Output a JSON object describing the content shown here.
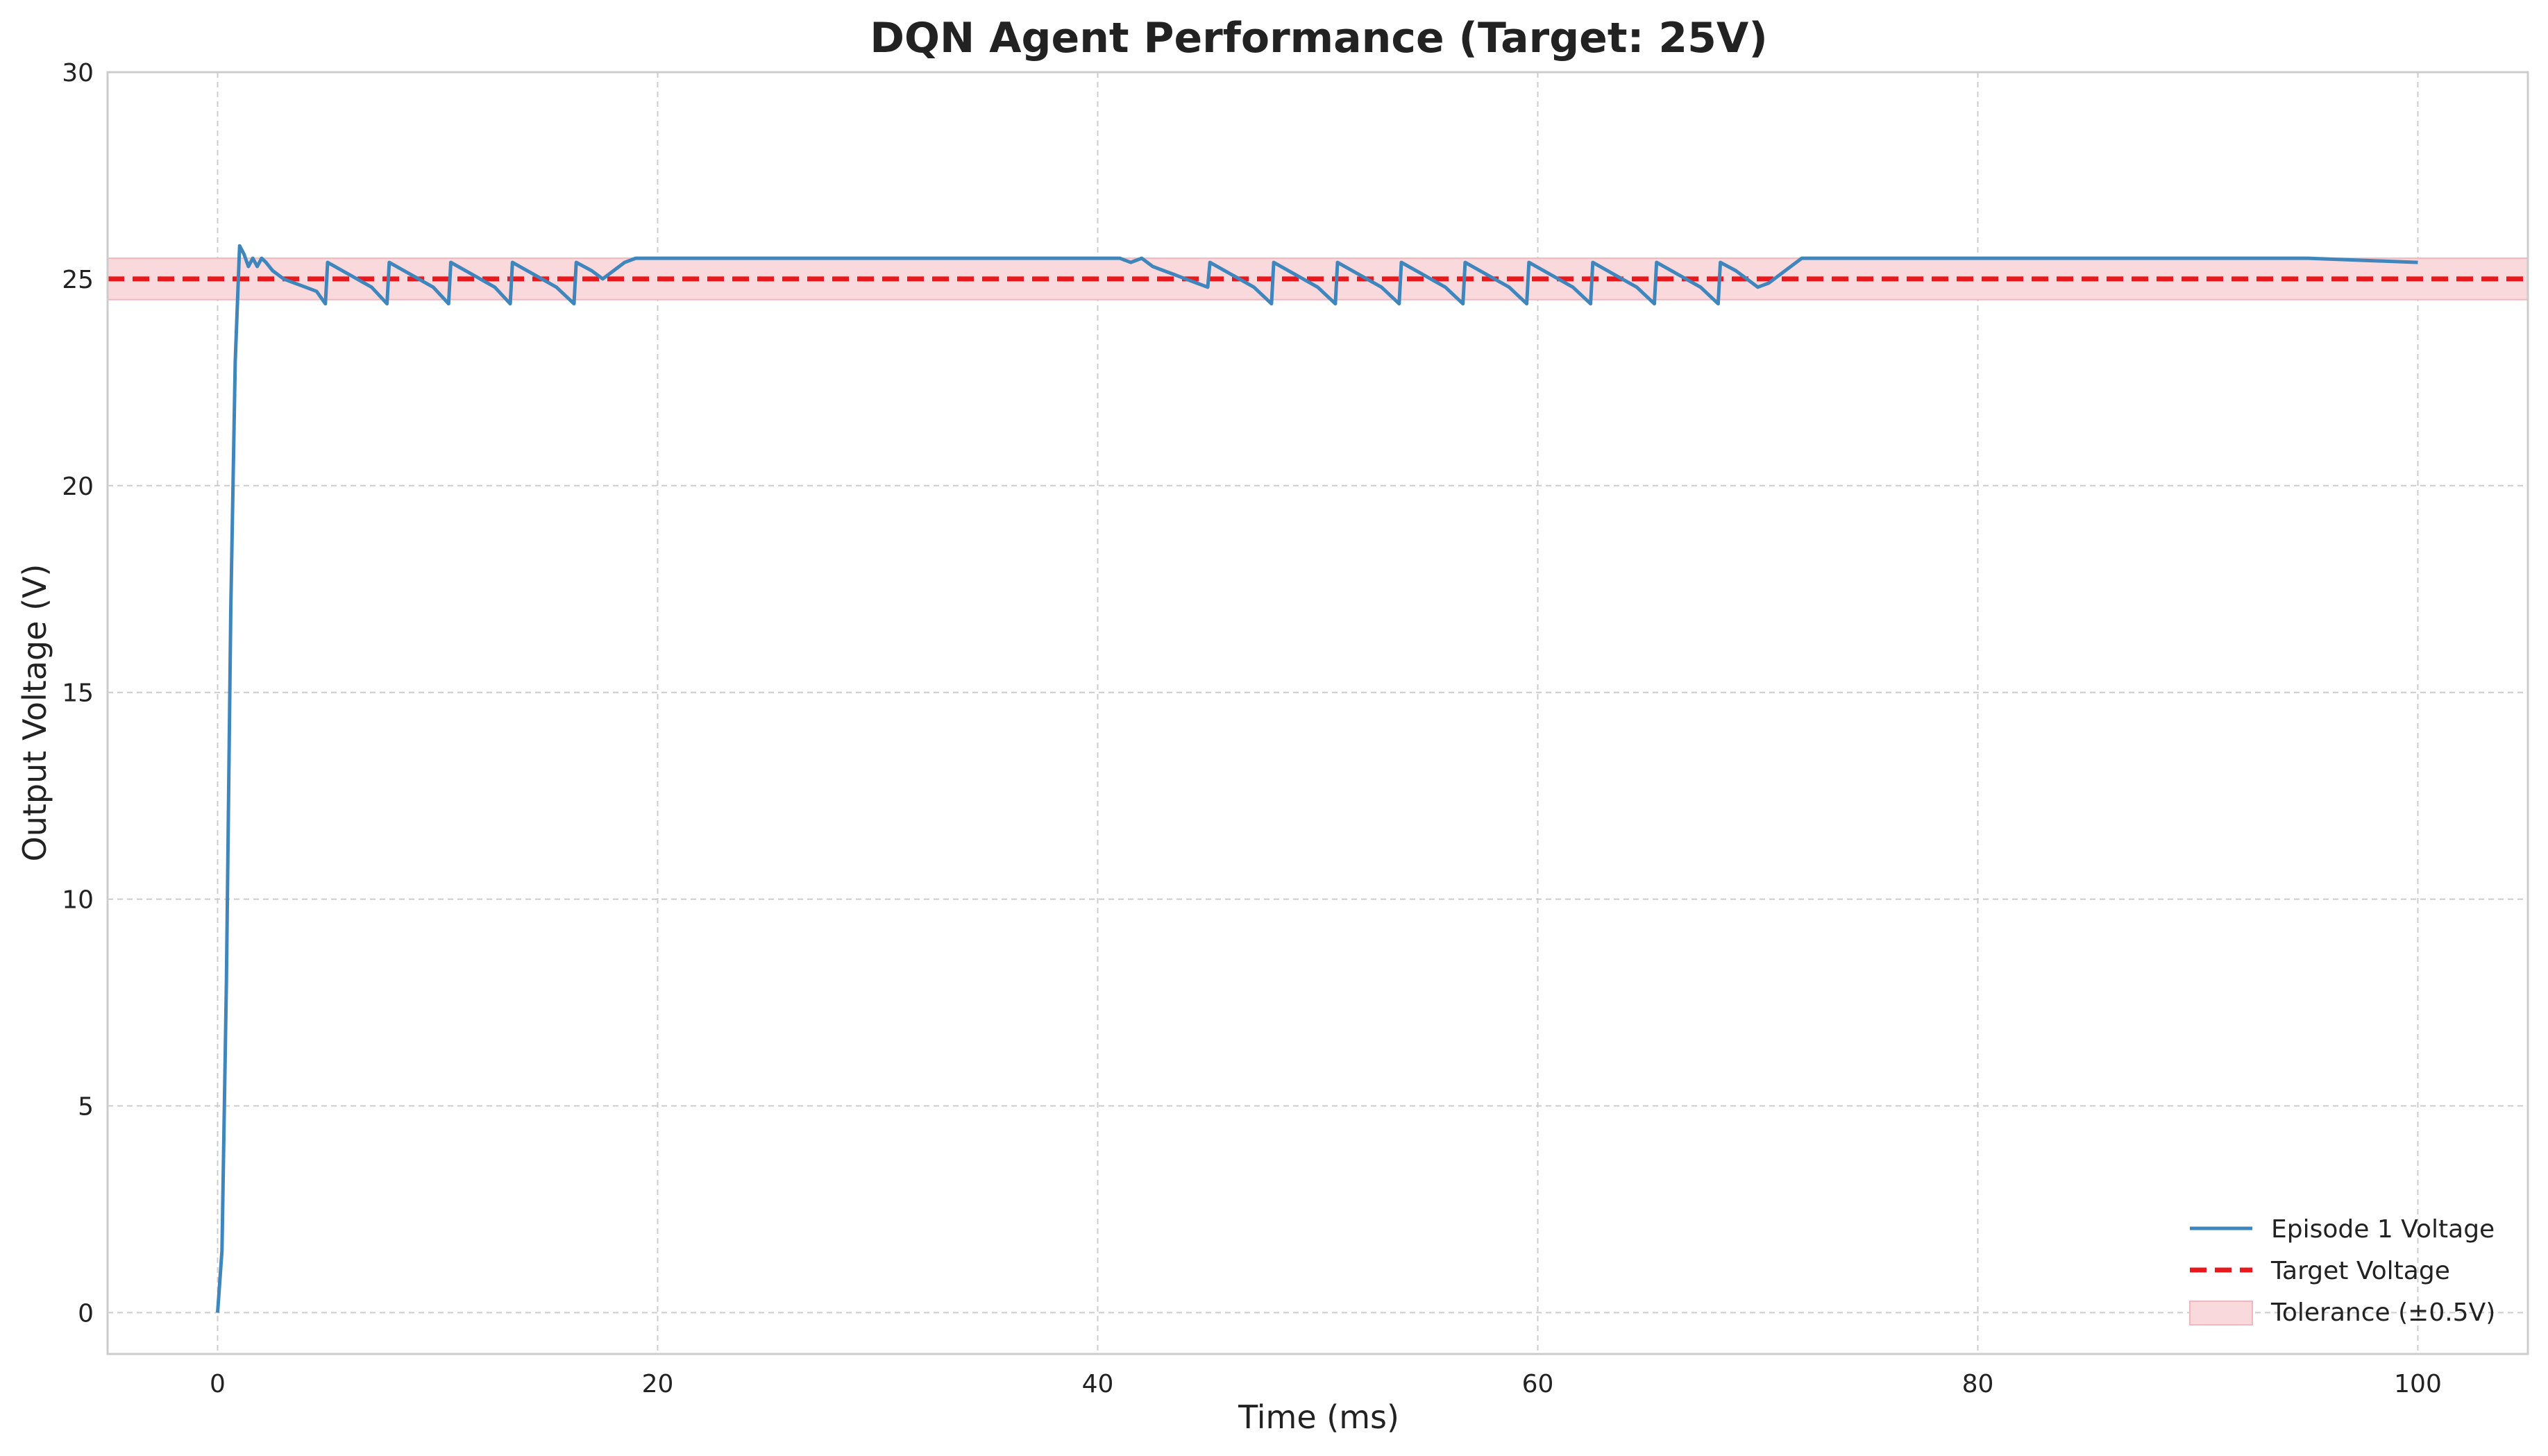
{
  "colors": {
    "series": "#3f86bd",
    "target": "#e8191c",
    "band_fill": "#f9d9dc",
    "band_edge": "#f2b7bd",
    "grid": "#cccccc",
    "frame": "#cccccc",
    "text": "#222222"
  },
  "chart_data": {
    "type": "line",
    "title": "DQN Agent Performance (Target: 25V)",
    "xlabel": "Time (ms)",
    "ylabel": "Output Voltage (V)",
    "xlim": [
      -5,
      105
    ],
    "ylim": [
      -1,
      30
    ],
    "xticks": [
      0,
      20,
      40,
      60,
      80,
      100
    ],
    "yticks": [
      0,
      5,
      10,
      15,
      20,
      25,
      30
    ],
    "grid": true,
    "legend_position": "lower-right",
    "legend": [
      {
        "label": "Episode 1 Voltage",
        "kind": "line"
      },
      {
        "label": "Target Voltage",
        "kind": "dashed"
      },
      {
        "label": "Tolerance (±0.5V)",
        "kind": "band"
      }
    ],
    "target": {
      "name": "Target Voltage",
      "value": 25
    },
    "tolerance_band": {
      "name": "Tolerance (±0.5V)",
      "low": 24.5,
      "high": 25.5
    },
    "series": [
      {
        "name": "Episode 1 Voltage",
        "x": [
          0,
          0.2,
          0.4,
          0.6,
          0.8,
          1.0,
          1.2,
          1.4,
          1.6,
          1.8,
          2.0,
          2.2,
          2.5,
          3.0,
          3.5,
          4.0,
          4.5,
          4.9,
          5.0,
          6.0,
          7.0,
          7.7,
          7.8,
          8.8,
          9.8,
          10.5,
          10.6,
          11.6,
          12.6,
          13.3,
          13.4,
          14.4,
          15.4,
          16.2,
          16.3,
          17.0,
          17.5,
          18.0,
          18.5,
          19.0,
          20,
          25,
          30,
          35,
          40,
          41,
          41.5,
          42,
          42.5,
          43,
          43.5,
          44,
          44.5,
          45.0,
          45.1,
          46.1,
          47.1,
          47.9,
          48.0,
          49.0,
          50.0,
          50.8,
          50.9,
          51.9,
          52.9,
          53.7,
          53.8,
          54.8,
          55.8,
          56.6,
          56.7,
          57.7,
          58.7,
          59.5,
          59.6,
          60.6,
          61.6,
          62.4,
          62.5,
          63.5,
          64.5,
          65.3,
          65.4,
          66.4,
          67.4,
          68.2,
          68.3,
          69.0,
          69.5,
          70.0,
          70.5,
          71.0,
          72.0,
          75,
          80,
          85,
          90,
          95,
          100
        ],
        "y": [
          0,
          1.5,
          8.0,
          17.0,
          23.0,
          25.8,
          25.6,
          25.3,
          25.5,
          25.3,
          25.5,
          25.4,
          25.2,
          25.0,
          24.9,
          24.8,
          24.7,
          24.4,
          25.4,
          25.1,
          24.8,
          24.4,
          25.4,
          25.1,
          24.8,
          24.4,
          25.4,
          25.1,
          24.8,
          24.4,
          25.4,
          25.1,
          24.8,
          24.4,
          25.4,
          25.2,
          25.0,
          25.2,
          25.4,
          25.5,
          25.5,
          25.5,
          25.5,
          25.5,
          25.5,
          25.5,
          25.4,
          25.5,
          25.3,
          25.2,
          25.1,
          25.0,
          24.9,
          24.8,
          25.4,
          25.1,
          24.8,
          24.4,
          25.4,
          25.1,
          24.8,
          24.4,
          25.4,
          25.1,
          24.8,
          24.4,
          25.4,
          25.1,
          24.8,
          24.4,
          25.4,
          25.1,
          24.8,
          24.4,
          25.4,
          25.1,
          24.8,
          24.4,
          25.4,
          25.1,
          24.8,
          24.4,
          25.4,
          25.1,
          24.8,
          24.4,
          25.4,
          25.2,
          25.0,
          24.8,
          24.9,
          25.1,
          25.5,
          25.5,
          25.5,
          25.5,
          25.5,
          25.5,
          25.4
        ]
      }
    ]
  }
}
